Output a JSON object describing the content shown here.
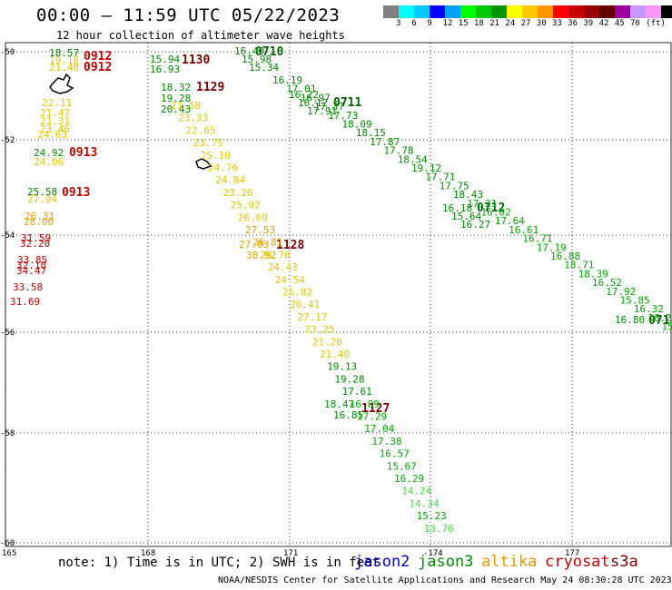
{
  "header": {
    "title": "00:00 – 11:59 UTC 05/22/2023",
    "subtitle": "12 hour collection of altimeter wave heights"
  },
  "colorbar": {
    "colors": [
      "#808080",
      "#00ffff",
      "#00c8ff",
      "#0000ff",
      "#00a0ff",
      "#00ff00",
      "#00c800",
      "#009600",
      "#ffff00",
      "#ffc800",
      "#ff9600",
      "#ff0000",
      "#c80000",
      "#960000",
      "#640000",
      "#a000a0",
      "#c896ff",
      "#ff96ff",
      "#000000"
    ],
    "labels": [
      "3",
      "6",
      "9",
      "12",
      "15",
      "18",
      "21",
      "24",
      "27",
      "30",
      "33",
      "36",
      "39",
      "42",
      "45",
      "70",
      "(ft)"
    ]
  },
  "axes": {
    "lon_ticks": [
      "165",
      "168",
      "171",
      "-174",
      "177"
    ],
    "lat_ticks": [
      "-50",
      "-52",
      "-54",
      "-56",
      "-58",
      "-60"
    ]
  },
  "passes": [
    {
      "time": "0912",
      "color": "#cc0000",
      "anchor": "0912a",
      "values": [
        "18.57",
        "19.18",
        "21.40"
      ]
    },
    {
      "time": "0912",
      "color": "#cc0000",
      "anchor": "0912b",
      "values": []
    },
    {
      "time": "0913",
      "color": "#cc0000",
      "anchor": "0913a",
      "values": [
        "24.92",
        "24.06"
      ]
    },
    {
      "time": "0913",
      "color": "#cc0000",
      "anchor": "0913b",
      "values": [
        "25.58",
        "27.04"
      ]
    },
    {
      "time": "1130",
      "color": "#800000",
      "anchor": "1130",
      "values": [
        "15.94",
        "16.93"
      ]
    },
    {
      "time": "1129",
      "color": "#800000",
      "anchor": "1129",
      "values": [
        "18.32",
        "19.28",
        "20.43"
      ]
    },
    {
      "time": "0710",
      "color": "#006400",
      "anchor": "0710",
      "values": [
        "16.40",
        "15.98",
        "15.34"
      ]
    },
    {
      "time": "0711",
      "color": "#006400",
      "anchor": "0711",
      "values": [
        "16.22",
        "16.12",
        "17.91"
      ]
    },
    {
      "time": "0712",
      "color": "#006400",
      "anchor": "0712",
      "values": [
        "16.18",
        "15.64",
        "16.27"
      ]
    },
    {
      "time": "1128",
      "color": "#800000",
      "anchor": "1128",
      "values": [
        "27.03",
        "30.92"
      ]
    },
    {
      "time": "1127",
      "color": "#800000",
      "anchor": "1127",
      "values": [
        "18.47",
        "16.85"
      ]
    },
    {
      "time": "071",
      "color": "#006400",
      "anchor": "071x",
      "values": [
        "16.80"
      ]
    }
  ],
  "labels_left": [
    {
      "v": "22.11",
      "c": "#e6c800"
    },
    {
      "v": "21.47",
      "c": "#e6c800"
    },
    {
      "v": "21.31",
      "c": "#e6c800"
    },
    {
      "v": "23.46",
      "c": "#e6c800"
    },
    {
      "v": "24.63",
      "c": "#e6c800"
    },
    {
      "v": "26.31",
      "c": "#e6a000"
    },
    {
      "v": "28.00",
      "c": "#e6a000"
    },
    {
      "v": "31.59",
      "c": "#cc0000"
    },
    {
      "v": "32.20",
      "c": "#cc0000"
    },
    {
      "v": "33.85",
      "c": "#cc0000"
    },
    {
      "v": "32.10",
      "c": "#cc0000"
    },
    {
      "v": "34.47",
      "c": "#cc0000"
    },
    {
      "v": "33.58",
      "c": "#cc0000"
    },
    {
      "v": "31.69",
      "c": "#cc0000"
    }
  ],
  "track_mid": [
    {
      "v": "21.58",
      "c": "#e6c800"
    },
    {
      "v": "23.33",
      "c": "#e6c800"
    },
    {
      "v": "22.65",
      "c": "#e6c800"
    },
    {
      "v": "23.75",
      "c": "#e6c800"
    },
    {
      "v": "25.10",
      "c": "#e6c800"
    },
    {
      "v": "24.76",
      "c": "#e6c800"
    },
    {
      "v": "24.84",
      "c": "#e6c800"
    },
    {
      "v": "23.20",
      "c": "#e6c800"
    },
    {
      "v": "25.92",
      "c": "#e6c800"
    },
    {
      "v": "26.69",
      "c": "#e6c800"
    },
    {
      "v": "27.53",
      "c": "#e6a000"
    },
    {
      "v": "26.81",
      "c": "#e6a000"
    },
    {
      "v": "26.70",
      "c": "#e6c800"
    },
    {
      "v": "24.43",
      "c": "#e6c800"
    },
    {
      "v": "24.54",
      "c": "#e6c800"
    },
    {
      "v": "25.82",
      "c": "#e6c800"
    },
    {
      "v": "26.41",
      "c": "#e6c800"
    },
    {
      "v": "27.17",
      "c": "#e6c800"
    },
    {
      "v": "23.25",
      "c": "#e6c800"
    },
    {
      "v": "21.20",
      "c": "#e6c800"
    },
    {
      "v": "21.40",
      "c": "#e6c800"
    },
    {
      "v": "19.13",
      "c": "#008c00"
    },
    {
      "v": "19.28",
      "c": "#008c00"
    },
    {
      "v": "17.61",
      "c": "#008c00"
    },
    {
      "v": "16.89",
      "c": "#00aa00"
    },
    {
      "v": "17.29",
      "c": "#00aa00"
    },
    {
      "v": "17.04",
      "c": "#00aa00"
    },
    {
      "v": "17.38",
      "c": "#00aa00"
    },
    {
      "v": "16.57",
      "c": "#00aa00"
    },
    {
      "v": "15.67",
      "c": "#00aa00"
    },
    {
      "v": "16.29",
      "c": "#00aa00"
    },
    {
      "v": "14.24",
      "c": "#44dd44"
    },
    {
      "v": "14.34",
      "c": "#44dd44"
    },
    {
      "v": "15.23",
      "c": "#00aa00"
    },
    {
      "v": "13.76",
      "c": "#44dd44"
    }
  ],
  "track_right": [
    {
      "v": "16.19",
      "c": "#008c00"
    },
    {
      "v": "17.01",
      "c": "#008c00"
    },
    {
      "v": "16.97",
      "c": "#008c00"
    },
    {
      "v": "17.37",
      "c": "#008c00"
    },
    {
      "v": "17.73",
      "c": "#008c00"
    },
    {
      "v": "18.09",
      "c": "#008c00"
    },
    {
      "v": "18.15",
      "c": "#008c00"
    },
    {
      "v": "17.87",
      "c": "#008c00"
    },
    {
      "v": "17.78",
      "c": "#008c00"
    },
    {
      "v": "18.54",
      "c": "#008c00"
    },
    {
      "v": "19.12",
      "c": "#008c00"
    },
    {
      "v": "17.71",
      "c": "#008c00"
    },
    {
      "v": "17.75",
      "c": "#008c00"
    },
    {
      "v": "18.43",
      "c": "#008c00"
    },
    {
      "v": "17.21",
      "c": "#00aa00"
    },
    {
      "v": "16.02",
      "c": "#00aa00"
    },
    {
      "v": "17.64",
      "c": "#00aa00"
    },
    {
      "v": "16.61",
      "c": "#00aa00"
    },
    {
      "v": "16.71",
      "c": "#00aa00"
    },
    {
      "v": "17.19",
      "c": "#00aa00"
    },
    {
      "v": "16.88",
      "c": "#00aa00"
    },
    {
      "v": "18.71",
      "c": "#00aa00"
    },
    {
      "v": "18.39",
      "c": "#00aa00"
    },
    {
      "v": "16.52",
      "c": "#00aa00"
    },
    {
      "v": "17.92",
      "c": "#00aa00"
    },
    {
      "v": "15.85",
      "c": "#00aa00"
    },
    {
      "v": "16.32",
      "c": "#00aa00"
    },
    {
      "v": "16.22",
      "c": "#00aa00"
    },
    {
      "v": "15.8",
      "c": "#00aa00"
    },
    {
      "v": "1",
      "c": "#00aa00"
    }
  ],
  "footer": {
    "note": "note: 1) Time is in UTC; 2) SWH is in feet",
    "satellites": [
      {
        "name": "jason2",
        "color": "#0000cc"
      },
      {
        "name": "jason3",
        "color": "#008c00"
      },
      {
        "name": "altika",
        "color": "#e69600"
      },
      {
        "name": "cryosat",
        "color": "#cc0000"
      },
      {
        "name": "s3a",
        "color": "#800000"
      }
    ],
    "credit": "NOAA/NESDIS Center for Satellite Applications and Research   May 24 08:30:28 UTC 2023"
  }
}
